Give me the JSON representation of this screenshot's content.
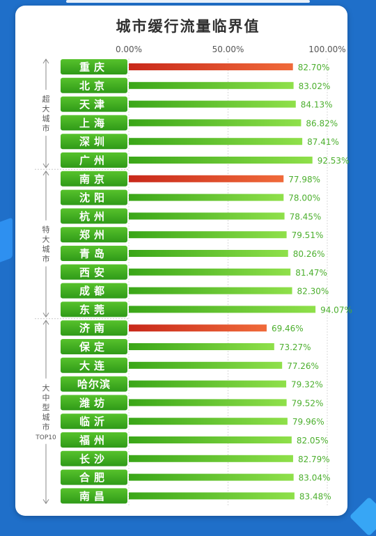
{
  "chart_data": {
    "type": "bar",
    "orientation": "horizontal",
    "title": "城市缓行流量临界值",
    "x_ticks": [
      "0.00%",
      "50.00%",
      "100.00%"
    ],
    "xlim": [
      0,
      100
    ],
    "grid": true,
    "highlight_color": "#d93a1c",
    "bar_color": "#5cc02a",
    "label_color": "#4caf2e",
    "groups": [
      {
        "label": "超大城市",
        "chars": [
          "超",
          "大",
          "城",
          "市"
        ],
        "cities": [
          {
            "name": "重庆",
            "value": 82.7,
            "label": "82.70%",
            "highlight": true
          },
          {
            "name": "北京",
            "value": 83.02,
            "label": "83.02%"
          },
          {
            "name": "天津",
            "value": 84.13,
            "label": "84.13%"
          },
          {
            "name": "上海",
            "value": 86.82,
            "label": "86.82%"
          },
          {
            "name": "深圳",
            "value": 87.41,
            "label": "87.41%"
          },
          {
            "name": "广州",
            "value": 92.53,
            "label": "92.53%"
          }
        ]
      },
      {
        "label": "特大城市",
        "chars": [
          "特",
          "大",
          "城",
          "市"
        ],
        "cities": [
          {
            "name": "南京",
            "value": 77.98,
            "label": "77.98%",
            "highlight": true
          },
          {
            "name": "沈阳",
            "value": 78.0,
            "label": "78.00%"
          },
          {
            "name": "杭州",
            "value": 78.45,
            "label": "78.45%"
          },
          {
            "name": "郑州",
            "value": 79.51,
            "label": "79.51%"
          },
          {
            "name": "青岛",
            "value": 80.26,
            "label": "80.26%"
          },
          {
            "name": "西安",
            "value": 81.47,
            "label": "81.47%"
          },
          {
            "name": "成都",
            "value": 82.3,
            "label": "82.30%"
          },
          {
            "name": "东莞",
            "value": 94.07,
            "label": "94.07%"
          }
        ]
      },
      {
        "label": "大中型城市TOP10",
        "chars": [
          "大",
          "中",
          "型",
          "城",
          "市",
          "TOP10"
        ],
        "cities": [
          {
            "name": "济南",
            "value": 69.46,
            "label": "69.46%",
            "highlight": true
          },
          {
            "name": "保定",
            "value": 73.27,
            "label": "73.27%"
          },
          {
            "name": "大连",
            "value": 77.26,
            "label": "77.26%"
          },
          {
            "name": "哈尔滨",
            "value": 79.32,
            "label": "79.32%"
          },
          {
            "name": "潍坊",
            "value": 79.52,
            "label": "79.52%"
          },
          {
            "name": "临沂",
            "value": 79.96,
            "label": "79.96%"
          },
          {
            "name": "福州",
            "value": 82.05,
            "label": "82.05%"
          },
          {
            "name": "长沙",
            "value": 82.79,
            "label": "82.79%"
          },
          {
            "name": "合肥",
            "value": 83.04,
            "label": "83.04%"
          },
          {
            "name": "南昌",
            "value": 83.48,
            "label": "83.48%"
          }
        ]
      }
    ]
  }
}
